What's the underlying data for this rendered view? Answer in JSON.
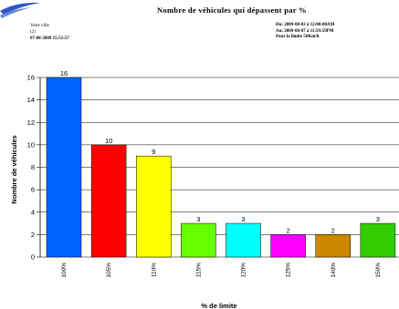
{
  "header": {
    "title": "Nombre de véhicules qui dépassent par %",
    "left_lines": [
      "Votre ville",
      "(2)",
      "07-08-2009 15:51:57"
    ],
    "right_lines": [
      "Du: 2009-08-03 à 12:00:00AM",
      "Au: 2009-08-07 à 11:59:59PM",
      "Pour la limite 50Km/h"
    ]
  },
  "colors": {
    "bars": [
      "#0066ff",
      "#ff0000",
      "#ffff00",
      "#66ff00",
      "#00ffff",
      "#ff00ff",
      "#cc8800",
      "#33cc00"
    ],
    "grid": "#000000",
    "logo": "#3355cc"
  },
  "icons": {
    "logo": "brand-swoosh-logo"
  },
  "chart_data": {
    "type": "bar",
    "categories": [
      "100%",
      "105%",
      "110%",
      "115%",
      "120%",
      "125%",
      "140%",
      "150%"
    ],
    "values": [
      16,
      10,
      9,
      3,
      3,
      2,
      2,
      3
    ],
    "xlabel": "% de limite",
    "ylabel": "Nombre de véhicules",
    "ylim": [
      0,
      16
    ],
    "yticks": [
      0,
      2,
      4,
      6,
      8,
      10,
      12,
      14,
      16
    ],
    "grid": true,
    "legend": "none"
  }
}
